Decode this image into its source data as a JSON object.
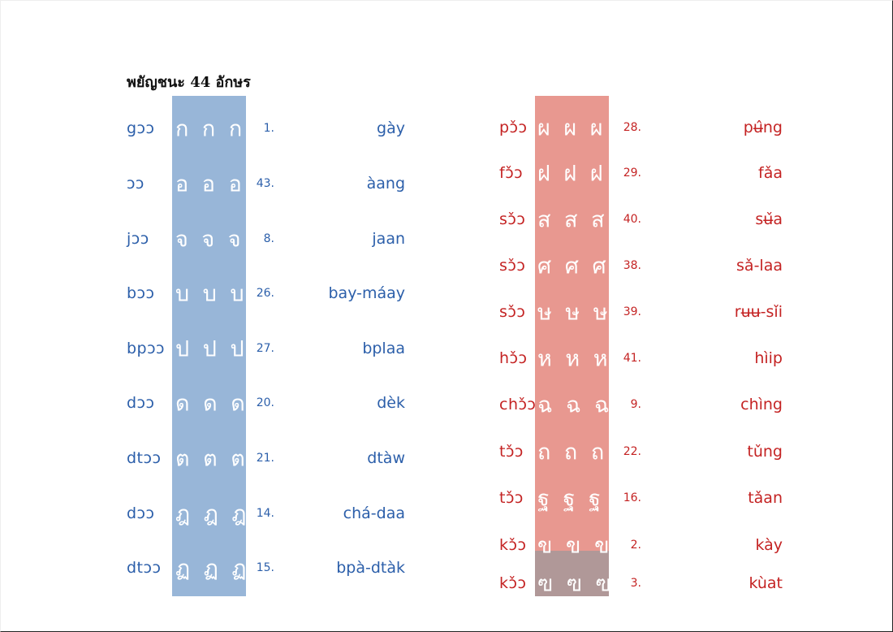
{
  "title": "พยัญชนะ 44 อักษร",
  "colors": {
    "blue_text": "#2c5faa",
    "red_text": "#c42323",
    "blue_band": "#98b6d8",
    "red_band": "#e89890",
    "gray_band": "#b09898"
  },
  "left": [
    {
      "name": "gɔɔ",
      "glyphs": "ก ก ก",
      "num": "1.",
      "word": "gày"
    },
    {
      "name": "ɔɔ",
      "glyphs": "อ อ อ",
      "num": "43.",
      "word": "àang"
    },
    {
      "name": "jɔɔ",
      "glyphs": "จ จ จ",
      "num": "8.",
      "word": "jaan"
    },
    {
      "name": "bɔɔ",
      "glyphs": "บ บ บ",
      "num": "26.",
      "word": "bay-máay"
    },
    {
      "name": "bpɔɔ",
      "glyphs": "ป ป ป",
      "num": "27.",
      "word": "bplaa"
    },
    {
      "name": "dɔɔ",
      "glyphs": "ด ด ด",
      "num": "20.",
      "word": "dèk"
    },
    {
      "name": "dtɔɔ",
      "glyphs": "ต ต ต",
      "num": "21.",
      "word": "dtàw"
    },
    {
      "name": "dɔɔ",
      "glyphs": "ฎ ฎ ฎ",
      "num": "14.",
      "word": "chá-daa"
    },
    {
      "name": "dtɔɔ",
      "glyphs": "ฏ ฏ ฏ",
      "num": "15.",
      "word": "bpà-dtàk"
    }
  ],
  "right": [
    {
      "name": "pɔ̌ɔ",
      "glyphs": "ผ ผ ผ",
      "num": "28.",
      "word": "pʉ̂ng"
    },
    {
      "name": "fɔ̌ɔ",
      "glyphs": "ฝ ฝ ฝ",
      "num": "29.",
      "word": "fǎa"
    },
    {
      "name": "sɔ̌ɔ",
      "glyphs": "ส ส ส",
      "num": "40.",
      "word": "sʉ̌a"
    },
    {
      "name": "sɔ̌ɔ",
      "glyphs": "ศ ศ ศ",
      "num": "38.",
      "word": "sǎ-laa"
    },
    {
      "name": "sɔ̌ɔ",
      "glyphs": "ษ ษ ษ",
      "num": "39.",
      "word": "rʉʉ-sǐi"
    },
    {
      "name": "hɔ̌ɔ",
      "glyphs": "ห ห ห",
      "num": "41.",
      "word": "hìip"
    },
    {
      "name": "chɔ̌ɔ",
      "glyphs": "ฉ ฉ ฉ",
      "num": "9.",
      "word": "chìng"
    },
    {
      "name": "tɔ̌ɔ",
      "glyphs": "ถ ถ ถ",
      "num": "22.",
      "word": "tǔng"
    },
    {
      "name": "tɔ̌ɔ",
      "glyphs": "ฐ ฐ ฐ",
      "num": "16.",
      "word": "tǎan"
    },
    {
      "name": "kɔ̌ɔ",
      "glyphs": "ข ข ข",
      "num": "2.",
      "word": "kày"
    },
    {
      "name": "kɔ̌ɔ",
      "glyphs": "ฃ ฃ ฃ",
      "num": "3.",
      "word": "kùat"
    }
  ]
}
